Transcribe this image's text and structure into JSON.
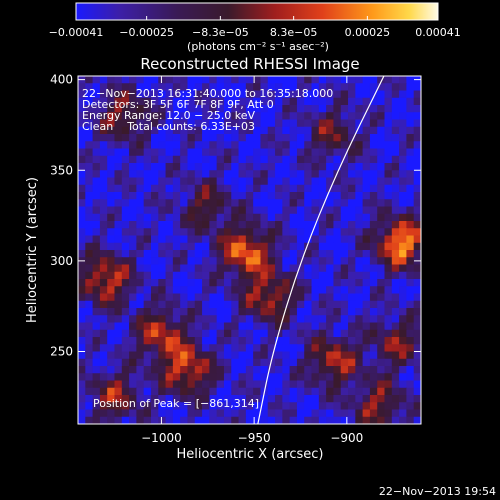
{
  "chart_data": {
    "type": "heatmap",
    "title": "Reconstructed RHESSI Image",
    "xlabel": "Heliocentric X (arcsec)",
    "ylabel": "Heliocentric Y (arcsec)",
    "xlim": [
      -1045,
      -860
    ],
    "ylim": [
      210,
      402
    ],
    "x_ticks": [
      -1000,
      -950,
      -900
    ],
    "y_ticks": [
      250,
      300,
      350,
      400
    ],
    "x_tick_labels": [
      "−1000",
      "−950",
      "−900"
    ],
    "y_tick_labels": [
      "250",
      "300",
      "350",
      "400"
    ],
    "colorbar": {
      "ticks": [
        -0.00041,
        -0.00025,
        -8.3e-05,
        8.3e-05,
        0.00025,
        0.00041
      ],
      "tick_labels": [
        "−0.00041",
        "−0.00025",
        "−8.3e−05",
        "8.3e−05",
        "0.00025",
        "0.00041"
      ],
      "unit_label": "(photons cm⁻² s⁻¹ asec⁻²)",
      "range": [
        -0.00041,
        0.00041
      ]
    },
    "annotations": [
      "22−Nov−2013 16:31:40.000 to 16:35:18.000",
      "Detectors: 3F 5F 6F 7F 8F 9F, Att 0",
      "Energy Range: 12.0 − 25.0 keV",
      "Clean    Total counts: 6.33E+03"
    ],
    "peak": {
      "label": "Position of Peak = [−861,314]",
      "x": -861,
      "y": 314
    },
    "limb_curve": [
      [
        -948,
        210
      ],
      [
        -940,
        250
      ],
      [
        -925,
        300
      ],
      [
        -905,
        350
      ],
      [
        -880,
        402
      ]
    ],
    "hotspots": [
      {
        "x": -868,
        "y": 310,
        "intensity": 1.0
      },
      {
        "x": -953,
        "y": 305,
        "intensity": 0.9
      },
      {
        "x": -1030,
        "y": 290,
        "intensity": 0.8
      },
      {
        "x": -1000,
        "y": 260,
        "intensity": 0.7
      },
      {
        "x": -985,
        "y": 240,
        "intensity": 0.8
      },
      {
        "x": -1025,
        "y": 225,
        "intensity": 0.6
      },
      {
        "x": -940,
        "y": 280,
        "intensity": 0.7
      },
      {
        "x": -905,
        "y": 245,
        "intensity": 0.7
      },
      {
        "x": -880,
        "y": 220,
        "intensity": 0.6
      },
      {
        "x": -1020,
        "y": 380,
        "intensity": 0.6
      },
      {
        "x": -905,
        "y": 370,
        "intensity": 0.5
      },
      {
        "x": -975,
        "y": 330,
        "intensity": 0.5
      },
      {
        "x": -870,
        "y": 255,
        "intensity": 0.55
      }
    ]
  },
  "footer": {
    "timestamp": "22−Nov−2013 19:54"
  }
}
